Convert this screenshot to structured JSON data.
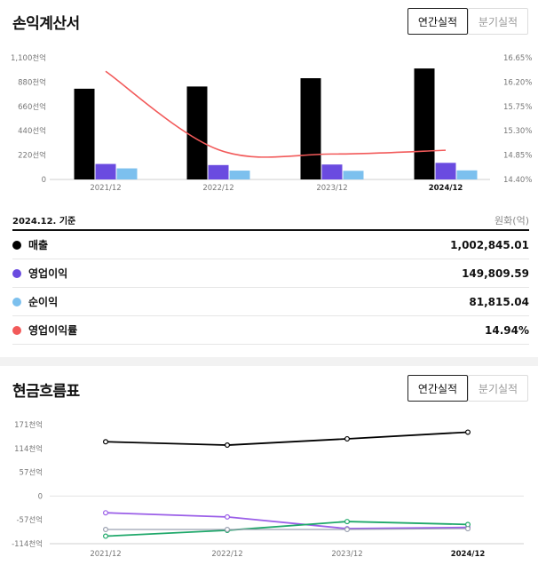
{
  "income": {
    "title": "손익계산서",
    "tab_annual": "연간실적",
    "tab_quarterly": "분기실적",
    "basis": "2024.12. 기준",
    "unit": "원화(억)",
    "rows": [
      {
        "label": "매출",
        "value": "1,002,845.01",
        "color": "#000000"
      },
      {
        "label": "영업이익",
        "value": "149,809.59",
        "color": "#6a4be0"
      },
      {
        "label": "순이익",
        "value": "81,815.04",
        "color": "#7cc0ee"
      },
      {
        "label": "영업이익률",
        "value": "14.94%",
        "color": "#f25a5a"
      }
    ]
  },
  "cashflow": {
    "title": "현금흐름표",
    "tab_annual": "연간실적",
    "tab_quarterly": "분기실적"
  },
  "chart_data": [
    {
      "type": "bar",
      "categories": [
        "2021/12",
        "2022/12",
        "2023/12",
        "2024/12"
      ],
      "series": [
        {
          "name": "매출",
          "color": "#000000",
          "values": [
            820,
            840,
            915,
            1003
          ]
        },
        {
          "name": "영업이익",
          "color": "#6a4be0",
          "values": [
            140,
            130,
            135,
            150
          ]
        },
        {
          "name": "순이익",
          "color": "#7cc0ee",
          "values": [
            100,
            80,
            78,
            82
          ]
        }
      ],
      "line_series": {
        "name": "영업이익률",
        "color": "#f25a5a",
        "values": [
          16.4,
          14.95,
          14.87,
          14.94
        ]
      },
      "y_ticks": [
        "0",
        "220선억",
        "440선억",
        "660선억",
        "880천억",
        "1,100천억"
      ],
      "ylim": [
        0,
        1100
      ],
      "y2_ticks": [
        "14.40%",
        "14.85%",
        "15.30%",
        "15.75%",
        "16.20%",
        "16.65%"
      ],
      "y2lim": [
        14.4,
        16.65
      ],
      "xlabel": "",
      "ylabel": ""
    },
    {
      "type": "line",
      "categories": [
        "2021/12",
        "2022/12",
        "2023/12",
        "2024/12"
      ],
      "series": [
        {
          "color": "#000000",
          "values": [
            130,
            122,
            137,
            153
          ]
        },
        {
          "color": "#9b5fe8",
          "values": [
            -40,
            -50,
            -78,
            -75
          ]
        },
        {
          "color": "#1fa86a",
          "values": [
            -96,
            -82,
            -61,
            -68
          ]
        },
        {
          "color": "#9aa0b0",
          "values": [
            -80,
            -80,
            -80,
            -78
          ]
        }
      ],
      "y_ticks": [
        "171천억",
        "114천억",
        "57선억",
        "0",
        "-57선억",
        "-114천억"
      ],
      "ylim": [
        -114,
        171
      ]
    }
  ]
}
